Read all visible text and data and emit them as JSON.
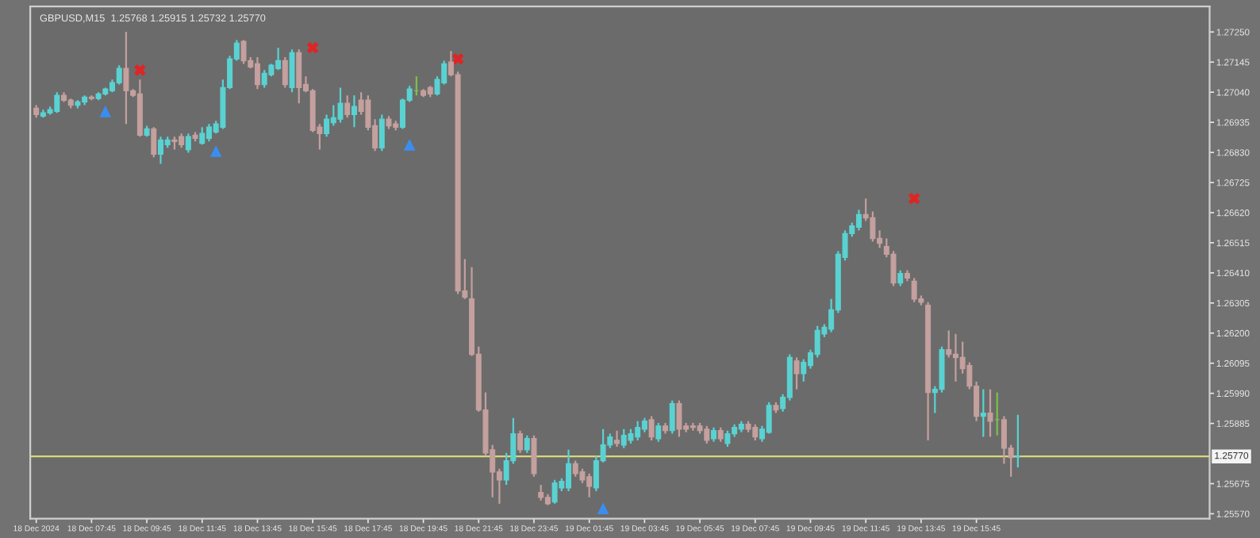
{
  "chart_data": {
    "type": "candlestick",
    "title": "GBPUSD,M15  1.25768 1.25915 1.25732 1.25770",
    "x": [
      "2024-12-18T05:45",
      "2024-12-18T06:00",
      "2024-12-18T06:15",
      "2024-12-18T06:30",
      "2024-12-18T06:45",
      "2024-12-18T07:00",
      "2024-12-18T07:15",
      "2024-12-18T07:30",
      "2024-12-18T07:45",
      "2024-12-18T08:00",
      "2024-12-18T08:15",
      "2024-12-18T08:30",
      "2024-12-18T08:45",
      "2024-12-18T09:00",
      "2024-12-18T09:15",
      "2024-12-18T09:30",
      "2024-12-18T09:45",
      "2024-12-18T10:00",
      "2024-12-18T10:15",
      "2024-12-18T10:30",
      "2024-12-18T10:45",
      "2024-12-18T11:00",
      "2024-12-18T11:15",
      "2024-12-18T11:30",
      "2024-12-18T11:45",
      "2024-12-18T12:00",
      "2024-12-18T12:15",
      "2024-12-18T12:30",
      "2024-12-18T12:45",
      "2024-12-18T13:00",
      "2024-12-18T13:15",
      "2024-12-18T13:30",
      "2024-12-18T13:45",
      "2024-12-18T14:00",
      "2024-12-18T14:15",
      "2024-12-18T14:30",
      "2024-12-18T14:45",
      "2024-12-18T15:00",
      "2024-12-18T15:15",
      "2024-12-18T15:30",
      "2024-12-18T15:45",
      "2024-12-18T16:00",
      "2024-12-18T16:15",
      "2024-12-18T16:30",
      "2024-12-18T16:45",
      "2024-12-18T17:00",
      "2024-12-18T17:15",
      "2024-12-18T17:30",
      "2024-12-18T17:45",
      "2024-12-18T18:00",
      "2024-12-18T18:15",
      "2024-12-18T18:30",
      "2024-12-18T18:45",
      "2024-12-18T19:00",
      "2024-12-18T19:15",
      "2024-12-18T19:30",
      "2024-12-18T19:45",
      "2024-12-18T20:00",
      "2024-12-18T20:15",
      "2024-12-18T20:30",
      "2024-12-18T20:45",
      "2024-12-18T21:00",
      "2024-12-18T21:15",
      "2024-12-18T21:30",
      "2024-12-18T21:45",
      "2024-12-18T22:00",
      "2024-12-18T22:15",
      "2024-12-18T22:30",
      "2024-12-18T22:45",
      "2024-12-18T23:00",
      "2024-12-18T23:15",
      "2024-12-18T23:30",
      "2024-12-18T23:45",
      "2024-12-19T00:00",
      "2024-12-19T00:15",
      "2024-12-19T00:30",
      "2024-12-19T00:45",
      "2024-12-19T01:00",
      "2024-12-19T01:15",
      "2024-12-19T01:30",
      "2024-12-19T01:45",
      "2024-12-19T02:00",
      "2024-12-19T02:15",
      "2024-12-19T02:30",
      "2024-12-19T02:45",
      "2024-12-19T03:00",
      "2024-12-19T03:15",
      "2024-12-19T03:30",
      "2024-12-19T03:45",
      "2024-12-19T04:00",
      "2024-12-19T04:15",
      "2024-12-19T04:30",
      "2024-12-19T04:45",
      "2024-12-19T05:00",
      "2024-12-19T05:15",
      "2024-12-19T05:30",
      "2024-12-19T05:45",
      "2024-12-19T06:00",
      "2024-12-19T06:15",
      "2024-12-19T06:30",
      "2024-12-19T06:45",
      "2024-12-19T07:00",
      "2024-12-19T07:15",
      "2024-12-19T07:30",
      "2024-12-19T07:45",
      "2024-12-19T08:00",
      "2024-12-19T08:15",
      "2024-12-19T08:30",
      "2024-12-19T08:45",
      "2024-12-19T09:00",
      "2024-12-19T09:15",
      "2024-12-19T09:30",
      "2024-12-19T09:45",
      "2024-12-19T10:00",
      "2024-12-19T10:15",
      "2024-12-19T10:30",
      "2024-12-19T10:45",
      "2024-12-19T11:00",
      "2024-12-19T11:15",
      "2024-12-19T11:30",
      "2024-12-19T11:45",
      "2024-12-19T12:00",
      "2024-12-19T12:15",
      "2024-12-19T12:30",
      "2024-12-19T12:45",
      "2024-12-19T13:00",
      "2024-12-19T13:15",
      "2024-12-19T13:30",
      "2024-12-19T13:45",
      "2024-12-19T14:00",
      "2024-12-19T14:15",
      "2024-12-19T14:30",
      "2024-12-19T14:45",
      "2024-12-19T15:00",
      "2024-12-19T15:15",
      "2024-12-19T15:30",
      "2024-12-19T15:45",
      "2024-12-19T16:00",
      "2024-12-19T16:15",
      "2024-12-19T16:30",
      "2024-12-19T16:45",
      "2024-12-19T17:00",
      "2024-12-19T17:15"
    ],
    "ohlc": [
      [
        1.26984,
        1.26995,
        1.26951,
        1.26962
      ],
      [
        1.26957,
        1.26979,
        1.26951,
        1.26968
      ],
      [
        1.26968,
        1.2699,
        1.26962,
        1.26979
      ],
      [
        1.26973,
        1.2704,
        1.26968,
        1.27029
      ],
      [
        1.27029,
        1.2704,
        1.27006,
        1.27012
      ],
      [
        1.27012,
        1.27018,
        1.26984,
        1.26995
      ],
      [
        1.26995,
        1.27012,
        1.26984,
        1.27006
      ],
      [
        1.27006,
        1.27029,
        1.26995,
        1.27023
      ],
      [
        1.27023,
        1.27029,
        1.27012,
        1.27018
      ],
      [
        1.27018,
        1.2704,
        1.27012,
        1.27034
      ],
      [
        1.27034,
        1.27056,
        1.27029,
        1.27051
      ],
      [
        1.27045,
        1.27084,
        1.2704,
        1.27073
      ],
      [
        1.27073,
        1.27134,
        1.27067,
        1.27123
      ],
      [
        1.27123,
        1.2725,
        1.26929,
        1.27045
      ],
      [
        1.27045,
        1.27051,
        1.27023,
        1.27029
      ],
      [
        1.27034,
        1.27084,
        1.26885,
        1.2689
      ],
      [
        1.2689,
        1.26923,
        1.26885,
        1.26912
      ],
      [
        1.26912,
        1.26918,
        1.26813,
        1.26824
      ],
      [
        1.26824,
        1.26885,
        1.2679,
        1.26873
      ],
      [
        1.26857,
        1.26885,
        1.26846,
        1.26873
      ],
      [
        1.26873,
        1.26885,
        1.2684,
        1.26868
      ],
      [
        1.26885,
        1.26896,
        1.26846,
        1.26857
      ],
      [
        1.2684,
        1.26896,
        1.26829,
        1.26885
      ],
      [
        1.2689,
        1.26901,
        1.26868,
        1.26879
      ],
      [
        1.26862,
        1.26918,
        1.26857,
        1.26896
      ],
      [
        1.26879,
        1.26929,
        1.26868,
        1.26918
      ],
      [
        1.26901,
        1.2694,
        1.26896,
        1.26929
      ],
      [
        1.26918,
        1.27084,
        1.26912,
        1.27056
      ],
      [
        1.27056,
        1.27167,
        1.27051,
        1.27156
      ],
      [
        1.27156,
        1.27222,
        1.2715,
        1.27211
      ],
      [
        1.27217,
        1.27222,
        1.27139,
        1.2715
      ],
      [
        1.2715,
        1.27162,
        1.27123,
        1.27128
      ],
      [
        1.27139,
        1.27162,
        1.27051,
        1.27067
      ],
      [
        1.27067,
        1.27117,
        1.27056,
        1.27106
      ],
      [
        1.27101,
        1.27139,
        1.27095,
        1.27134
      ],
      [
        1.27123,
        1.27195,
        1.27117,
        1.2715
      ],
      [
        1.2715,
        1.27162,
        1.27056,
        1.27067
      ],
      [
        1.27056,
        1.27189,
        1.2704,
        1.27178
      ],
      [
        1.27178,
        1.27189,
        1.27001,
        1.27056
      ],
      [
        1.27067,
        1.27095,
        1.2704,
        1.27045
      ],
      [
        1.27045,
        1.27051,
        1.26901,
        1.26907
      ],
      [
        1.26918,
        1.26929,
        1.2684,
        1.26896
      ],
      [
        1.26896,
        1.26962,
        1.26885,
        1.26946
      ],
      [
        1.26934,
        1.26995,
        1.26923,
        1.26951
      ],
      [
        1.26946,
        1.27056,
        1.26934,
        1.27001
      ],
      [
        1.27001,
        1.27029,
        1.26951,
        1.26962
      ],
      [
        1.26962,
        1.27029,
        1.26918,
        1.2699
      ],
      [
        1.27012,
        1.2704,
        1.26962,
        1.26973
      ],
      [
        1.27012,
        1.27029,
        1.26907,
        1.26918
      ],
      [
        1.26923,
        1.26946,
        1.26835,
        1.26846
      ],
      [
        1.26846,
        1.26962,
        1.26835,
        1.26946
      ],
      [
        1.26946,
        1.26957,
        1.26912,
        1.26923
      ],
      [
        1.26929,
        1.2694,
        1.26907,
        1.26918
      ],
      [
        1.26918,
        1.27018,
        1.26912,
        1.27012
      ],
      [
        1.27012,
        1.27062,
        1.27006,
        1.27051
      ],
      [
        1.27045,
        1.27095,
        1.27029,
        1.27045
      ],
      [
        1.27045,
        1.27051,
        1.27023,
        1.27029
      ],
      [
        1.27056,
        1.27062,
        1.27023,
        1.27034
      ],
      [
        1.27034,
        1.27095,
        1.27029,
        1.27084
      ],
      [
        1.27073,
        1.2715,
        1.27067,
        1.27139
      ],
      [
        1.27145,
        1.27184,
        1.27095,
        1.27101
      ],
      [
        1.27101,
        1.27112,
        1.26336,
        1.26347
      ],
      [
        1.26347,
        1.26458,
        1.26319,
        1.26325
      ],
      [
        1.26319,
        1.2643,
        1.2612,
        1.26126
      ],
      [
        1.26126,
        1.26153,
        1.25926,
        1.25932
      ],
      [
        1.25932,
        1.25993,
        1.25771,
        1.25782
      ],
      [
        1.25793,
        1.2581,
        1.25627,
        1.25716
      ],
      [
        1.25716,
        1.25727,
        1.25605,
        1.25688
      ],
      [
        1.25688,
        1.25782,
        1.25671,
        1.25755
      ],
      [
        1.25755,
        1.25904,
        1.25744,
        1.25849
      ],
      [
        1.25849,
        1.2586,
        1.25782,
        1.25793
      ],
      [
        1.25793,
        1.25843,
        1.25782,
        1.25832
      ],
      [
        1.25832,
        1.25843,
        1.25699,
        1.2571
      ],
      [
        1.25644,
        1.25671,
        1.25616,
        1.25627
      ],
      [
        1.25627,
        1.25638,
        1.256,
        1.25605
      ],
      [
        1.25611,
        1.25688,
        1.25605,
        1.25677
      ],
      [
        1.2566,
        1.25694,
        1.25649,
        1.25683
      ],
      [
        1.2566,
        1.25793,
        1.25649,
        1.25744
      ],
      [
        1.25744,
        1.25755,
        1.25699,
        1.2571
      ],
      [
        1.25716,
        1.25727,
        1.25677,
        1.25688
      ],
      [
        1.25699,
        1.2571,
        1.25627,
        1.25666
      ],
      [
        1.2566,
        1.25771,
        1.25649,
        1.25755
      ],
      [
        1.25755,
        1.25865,
        1.25749,
        1.2581
      ],
      [
        1.2581,
        1.25849,
        1.25799,
        1.25838
      ],
      [
        1.25826,
        1.2586,
        1.25804,
        1.25815
      ],
      [
        1.2581,
        1.25865,
        1.25799,
        1.25843
      ],
      [
        1.25826,
        1.25865,
        1.25815,
        1.25849
      ],
      [
        1.25838,
        1.25893,
        1.25826,
        1.25871
      ],
      [
        1.25865,
        1.25904,
        1.25854,
        1.25893
      ],
      [
        1.25898,
        1.2591,
        1.25826,
        1.25838
      ],
      [
        1.25832,
        1.25887,
        1.25821,
        1.25876
      ],
      [
        1.25876,
        1.25887,
        1.25849,
        1.2586
      ],
      [
        1.2586,
        1.25965,
        1.25849,
        1.25954
      ],
      [
        1.25954,
        1.25965,
        1.25838,
        1.25865
      ],
      [
        1.25876,
        1.25887,
        1.25854,
        1.25865
      ],
      [
        1.25876,
        1.25887,
        1.2586,
        1.25871
      ],
      [
        1.25876,
        1.25887,
        1.25849,
        1.2586
      ],
      [
        1.25865,
        1.25876,
        1.25815,
        1.25826
      ],
      [
        1.25832,
        1.25871,
        1.25821,
        1.2586
      ],
      [
        1.2586,
        1.25871,
        1.25821,
        1.25832
      ],
      [
        1.25815,
        1.2586,
        1.25804,
        1.25849
      ],
      [
        1.25849,
        1.25882,
        1.25838,
        1.25871
      ],
      [
        1.25865,
        1.25893,
        1.25854,
        1.25882
      ],
      [
        1.25882,
        1.25893,
        1.25854,
        1.25865
      ],
      [
        1.25871,
        1.25882,
        1.25826,
        1.25838
      ],
      [
        1.25832,
        1.25876,
        1.25821,
        1.25865
      ],
      [
        1.25854,
        1.25959,
        1.25849,
        1.25948
      ],
      [
        1.25948,
        1.25959,
        1.25921,
        1.25932
      ],
      [
        1.25937,
        1.25987,
        1.25926,
        1.25976
      ],
      [
        1.25976,
        1.26126,
        1.25965,
        1.26115
      ],
      [
        1.26103,
        1.26115,
        1.26004,
        1.26059
      ],
      [
        1.26059,
        1.26109,
        1.26031,
        1.26098
      ],
      [
        1.26087,
        1.26142,
        1.26076,
        1.26131
      ],
      [
        1.26126,
        1.26225,
        1.26115,
        1.26209
      ],
      [
        1.26197,
        1.26231,
        1.26186,
        1.2622
      ],
      [
        1.26214,
        1.26319,
        1.26203,
        1.26281
      ],
      [
        1.26281,
        1.26486,
        1.2627,
        1.26475
      ],
      [
        1.26464,
        1.26558,
        1.26453,
        1.26547
      ],
      [
        1.26547,
        1.26585,
        1.26536,
        1.26574
      ],
      [
        1.26569,
        1.2663,
        1.26558,
        1.26613
      ],
      [
        1.26613,
        1.26669,
        1.26591,
        1.26602
      ],
      [
        1.26602,
        1.26624,
        1.26519,
        1.2653
      ],
      [
        1.2653,
        1.26558,
        1.26497,
        1.26513
      ],
      [
        1.26502,
        1.2653,
        1.26464,
        1.26475
      ],
      [
        1.26475,
        1.26486,
        1.26364,
        1.26375
      ],
      [
        1.26375,
        1.26419,
        1.26364,
        1.26408
      ],
      [
        1.26408,
        1.26419,
        1.26381,
        1.26392
      ],
      [
        1.26381,
        1.26392,
        1.26308,
        1.26319
      ],
      [
        1.26319,
        1.26331,
        1.26297,
        1.26308
      ],
      [
        1.26297,
        1.26308,
        1.25826,
        1.25993
      ],
      [
        1.25993,
        1.26015,
        1.25921,
        1.26004
      ],
      [
        1.26004,
        1.26153,
        1.25993,
        1.26142
      ],
      [
        1.26142,
        1.26209,
        1.26115,
        1.26126
      ],
      [
        1.26126,
        1.26197,
        1.26031,
        1.26115
      ],
      [
        1.26115,
        1.2617,
        1.26059,
        1.26076
      ],
      [
        1.26087,
        1.26098,
        1.26004,
        1.26015
      ],
      [
        1.26015,
        1.26031,
        1.25893,
        1.2591
      ],
      [
        1.2591,
        1.26004,
        1.25838,
        1.25921
      ],
      [
        1.25921,
        1.26004,
        1.25838,
        1.25893
      ],
      [
        1.25898,
        1.25993,
        1.25843,
        1.25898
      ],
      [
        1.25898,
        1.2591,
        1.25744,
        1.25799
      ],
      [
        1.25799,
        1.2581,
        1.25699,
        1.25766
      ],
      [
        1.25768,
        1.25915,
        1.25732,
        1.2577
      ]
    ],
    "colors": [
      "#c4a09e",
      "#5ad2d2",
      "#5ad2d2",
      "#5ad2d2",
      "#c4a09e",
      "#c4a09e",
      "#5ad2d2",
      "#5ad2d2",
      "#c4a09e",
      "#5ad2d2",
      "#5ad2d2",
      "#5ad2d2",
      "#5ad2d2",
      "#c4a09e",
      "#c4a09e",
      "#c4a09e",
      "#5ad2d2",
      "#c4a09e",
      "#5ad2d2",
      "#5ad2d2",
      "#c4a09e",
      "#c4a09e",
      "#5ad2d2",
      "#c4a09e",
      "#5ad2d2",
      "#5ad2d2",
      "#5ad2d2",
      "#5ad2d2",
      "#5ad2d2",
      "#5ad2d2",
      "#c4a09e",
      "#c4a09e",
      "#c4a09e",
      "#5ad2d2",
      "#5ad2d2",
      "#5ad2d2",
      "#c4a09e",
      "#5ad2d2",
      "#c4a09e",
      "#c4a09e",
      "#c4a09e",
      "#c4a09e",
      "#5ad2d2",
      "#5ad2d2",
      "#5ad2d2",
      "#c4a09e",
      "#5ad2d2",
      "#c4a09e",
      "#c4a09e",
      "#c4a09e",
      "#5ad2d2",
      "#c4a09e",
      "#c4a09e",
      "#5ad2d2",
      "#5ad2d2",
      "#7cc04a",
      "#c4a09e",
      "#c4a09e",
      "#5ad2d2",
      "#5ad2d2",
      "#c4a09e",
      "#c4a09e",
      "#c4a09e",
      "#c4a09e",
      "#c4a09e",
      "#c4a09e",
      "#c4a09e",
      "#c4a09e",
      "#5ad2d2",
      "#5ad2d2",
      "#c4a09e",
      "#5ad2d2",
      "#c4a09e",
      "#c4a09e",
      "#c4a09e",
      "#5ad2d2",
      "#5ad2d2",
      "#5ad2d2",
      "#c4a09e",
      "#c4a09e",
      "#c4a09e",
      "#5ad2d2",
      "#5ad2d2",
      "#5ad2d2",
      "#c4a09e",
      "#5ad2d2",
      "#5ad2d2",
      "#5ad2d2",
      "#5ad2d2",
      "#c4a09e",
      "#5ad2d2",
      "#c4a09e",
      "#5ad2d2",
      "#c4a09e",
      "#c4a09e",
      "#c4a09e",
      "#c4a09e",
      "#c4a09e",
      "#5ad2d2",
      "#c4a09e",
      "#5ad2d2",
      "#5ad2d2",
      "#5ad2d2",
      "#c4a09e",
      "#c4a09e",
      "#5ad2d2",
      "#5ad2d2",
      "#c4a09e",
      "#5ad2d2",
      "#5ad2d2",
      "#c4a09e",
      "#5ad2d2",
      "#5ad2d2",
      "#5ad2d2",
      "#5ad2d2",
      "#5ad2d2",
      "#5ad2d2",
      "#5ad2d2",
      "#5ad2d2",
      "#5ad2d2",
      "#c4a09e",
      "#c4a09e",
      "#c4a09e",
      "#c4a09e",
      "#c4a09e",
      "#5ad2d2",
      "#c4a09e",
      "#c4a09e",
      "#c4a09e",
      "#c4a09e",
      "#5ad2d2",
      "#5ad2d2",
      "#c4a09e",
      "#c4a09e",
      "#c4a09e",
      "#c4a09e",
      "#c4a09e",
      "#5ad2d2",
      "#c4a09e",
      "#7cc04a",
      "#c4a09e",
      "#c4a09e",
      "#5ad2d2"
    ],
    "series": [
      {
        "type": "scatter",
        "color": "#e02424",
        "marker": "cross",
        "x": [
          "2024-12-18T09:30",
          "2024-12-18T15:45",
          "2024-12-18T21:00",
          "2024-12-19T13:30"
        ],
        "values": [
          1.27117,
          1.27195,
          1.27156,
          1.26669
        ]
      },
      {
        "type": "scatter",
        "color": "#3a8ef0",
        "marker": "triangle",
        "x": [
          "2024-12-18T08:15",
          "2024-12-18T12:15",
          "2024-12-18T19:15",
          "2024-12-19T02:15"
        ],
        "values": [
          1.26973,
          1.26835,
          1.26857,
          1.25589
        ]
      }
    ],
    "ref_lines": [
      {
        "axis": "y",
        "value": 1.2577,
        "label": "1.25770",
        "color": "#d8d878"
      }
    ],
    "xlim": [
      "2024-12-18T05:32",
      "2024-12-20T00:11"
    ],
    "xticks": [
      {
        "value": "2024-12-18T05:45",
        "label": "18 Dec 2024"
      },
      {
        "value": "2024-12-18T07:45",
        "label": "18 Dec 07:45"
      },
      {
        "value": "2024-12-18T09:45",
        "label": "18 Dec 09:45"
      },
      {
        "value": "2024-12-18T11:45",
        "label": "18 Dec 11:45"
      },
      {
        "value": "2024-12-18T13:45",
        "label": "18 Dec 13:45"
      },
      {
        "value": "2024-12-18T15:45",
        "label": "18 Dec 15:45"
      },
      {
        "value": "2024-12-18T17:45",
        "label": "18 Dec 17:45"
      },
      {
        "value": "2024-12-18T19:45",
        "label": "18 Dec 19:45"
      },
      {
        "value": "2024-12-18T21:45",
        "label": "18 Dec 21:45"
      },
      {
        "value": "2024-12-18T23:45",
        "label": "18 Dec 23:45"
      },
      {
        "value": "2024-12-19T01:45",
        "label": "19 Dec 01:45"
      },
      {
        "value": "2024-12-19T03:45",
        "label": "19 Dec 03:45"
      },
      {
        "value": "2024-12-19T05:45",
        "label": "19 Dec 05:45"
      },
      {
        "value": "2024-12-19T07:45",
        "label": "19 Dec 07:45"
      },
      {
        "value": "2024-12-19T09:45",
        "label": "19 Dec 09:45"
      },
      {
        "value": "2024-12-19T11:45",
        "label": "19 Dec 11:45"
      },
      {
        "value": "2024-12-19T13:45",
        "label": "19 Dec 13:45"
      },
      {
        "value": "2024-12-19T15:45",
        "label": "19 Dec 15:45"
      }
    ],
    "ylim": [
      1.25553,
      1.27339
    ],
    "yticks": [
      {
        "value": 1.2725,
        "label": "1.27250"
      },
      {
        "value": 1.27145,
        "label": "1.27145"
      },
      {
        "value": 1.2704,
        "label": "1.27040"
      },
      {
        "value": 1.26935,
        "label": "1.26935"
      },
      {
        "value": 1.2683,
        "label": "1.26830"
      },
      {
        "value": 1.26725,
        "label": "1.26725"
      },
      {
        "value": 1.2662,
        "label": "1.26620"
      },
      {
        "value": 1.26515,
        "label": "1.26515"
      },
      {
        "value": 1.2641,
        "label": "1.26410"
      },
      {
        "value": 1.26305,
        "label": "1.26305"
      },
      {
        "value": 1.262,
        "label": "1.26200"
      },
      {
        "value": 1.26095,
        "label": "1.26095"
      },
      {
        "value": 1.2599,
        "label": "1.25990"
      },
      {
        "value": 1.25885,
        "label": "1.25885"
      },
      {
        "value": 1.25675,
        "label": "1.25675"
      },
      {
        "value": 1.2557,
        "label": "1.25570"
      }
    ],
    "grid": false,
    "legend": false
  }
}
